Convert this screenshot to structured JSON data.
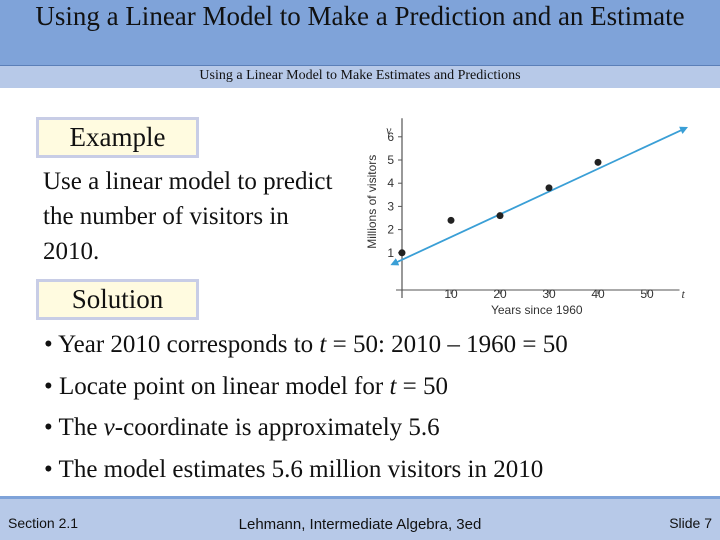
{
  "slide": {
    "title": "Using a Linear Model to Make a Prediction and an Estimate",
    "subtitle": "Using a Linear Model to Make Estimates and Predictions",
    "example_label": "Example",
    "prompt": "Use a linear model to predict the number of visitors in 2010.",
    "solution_label": "Solution",
    "bullets": [
      {
        "prefix": "• Year 2010 corresponds to ",
        "var": "t",
        "suffix": " = 50:  2010 – 1960 = 50"
      },
      {
        "prefix": "• Locate point on linear model for ",
        "var": "t",
        "suffix": " = 50"
      },
      {
        "prefix": "• The ",
        "var": "v",
        "suffix": "-coordinate is approximately 5.6"
      },
      {
        "prefix": "• The model estimates 5.6 million visitors in 2010",
        "var": "",
        "suffix": ""
      }
    ]
  },
  "footer": {
    "section": "Section 2.1",
    "book": "Lehmann, Intermediate Algebra, 3ed",
    "slide": "Slide 7"
  },
  "colors": {
    "line": "#3a9fd6",
    "axis": "#555555",
    "title_bar": "#7fa3d9",
    "subtitle_bar": "#b7c9e8"
  },
  "chart_data": {
    "type": "scatter",
    "xlabel": "Years since 1960",
    "ylabel": "Millions of visitors",
    "x_axis_var": "t",
    "y_axis_var": "v",
    "xlim": [
      0,
      55
    ],
    "ylim": [
      0,
      6.8
    ],
    "x_ticks": [
      10,
      20,
      30,
      40,
      50
    ],
    "y_ticks": [
      1,
      2,
      3,
      4,
      5,
      6
    ],
    "points": [
      {
        "x": 0,
        "y": 1.0
      },
      {
        "x": 10,
        "y": 2.4
      },
      {
        "x": 20,
        "y": 2.6
      },
      {
        "x": 30,
        "y": 3.8
      },
      {
        "x": 40,
        "y": 4.9
      }
    ],
    "model_line": {
      "slope": 0.098,
      "intercept": 0.7,
      "x_start": -2,
      "x_end": 58
    }
  }
}
